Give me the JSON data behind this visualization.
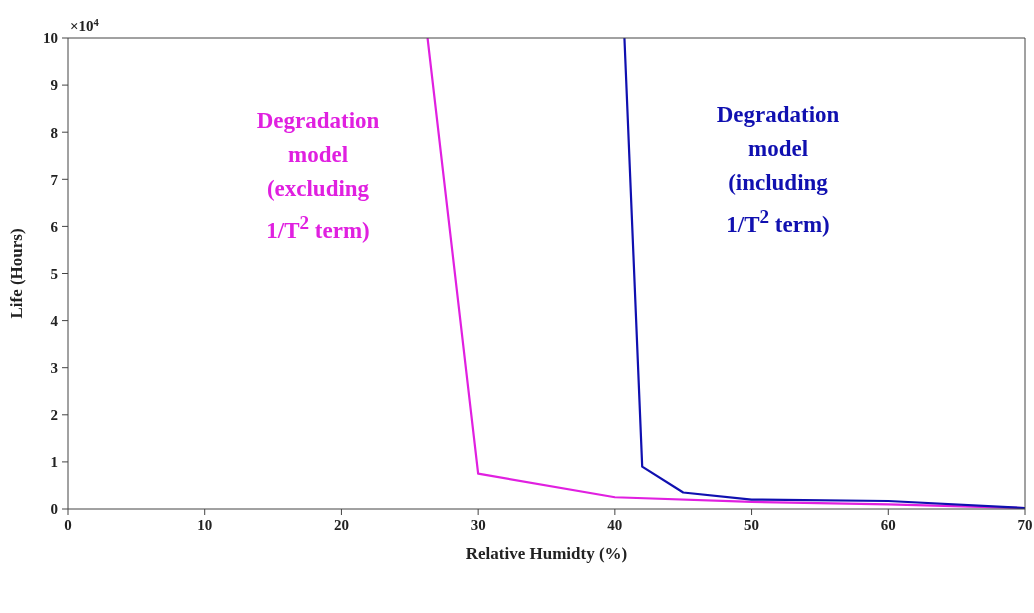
{
  "chart_data": {
    "type": "line",
    "xlabel": "Relative Humidty (%)",
    "ylabel": "Life (Hours)",
    "annotations": [
      "×10$^{4}$"
    ],
    "xlim": [
      0,
      70
    ],
    "xticks": [
      0,
      10,
      20,
      30,
      40,
      50,
      60,
      70
    ],
    "ylim": [
      0,
      10
    ],
    "yticks": [
      0,
      1,
      2,
      3,
      4,
      5,
      6,
      7,
      8,
      9,
      10
    ],
    "marker": "none",
    "line_style": "solid",
    "series": [
      {
        "name": "Degradation model (excluding 1/T$^{2}$ term)",
        "color": "#e020e0",
        "x": [
          26.3,
          30,
          40,
          50,
          60,
          70
        ],
        "values": [
          10,
          0.75,
          0.25,
          0.15,
          0.1,
          0.02
        ]
      },
      {
        "name": "Degradation model (including 1/T$^{2}$ term)",
        "color": "#1010b0",
        "x": [
          40.7,
          42,
          45,
          50,
          60,
          70
        ],
        "values": [
          10,
          0.9,
          0.35,
          0.2,
          0.17,
          0.02
        ]
      }
    ]
  }
}
